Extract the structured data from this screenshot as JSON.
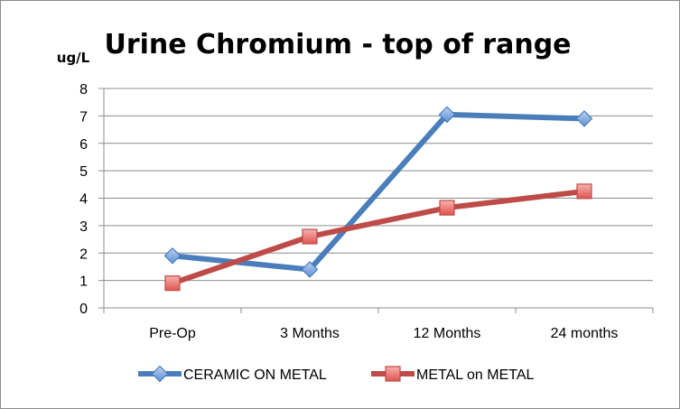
{
  "chart_data": {
    "type": "line",
    "title": "Urine Chromium - top of range",
    "ylabel": "ug/L",
    "xlabel": "",
    "categories": [
      "Pre-Op",
      "3 Months",
      "12 Months",
      "24  months"
    ],
    "ylim": [
      0,
      8
    ],
    "yticks": [
      0,
      1,
      2,
      3,
      4,
      5,
      6,
      7,
      8
    ],
    "grid": true,
    "legend_position": "bottom",
    "series": [
      {
        "name": "CERAMIC ON METAL",
        "values": [
          1.9,
          1.4,
          7.05,
          6.9
        ],
        "color": "#4a7ebb",
        "marker": "diamond"
      },
      {
        "name": "METAL on METAL",
        "values": [
          0.9,
          2.6,
          3.65,
          4.25
        ],
        "color": "#be4b48",
        "marker": "square"
      }
    ]
  }
}
